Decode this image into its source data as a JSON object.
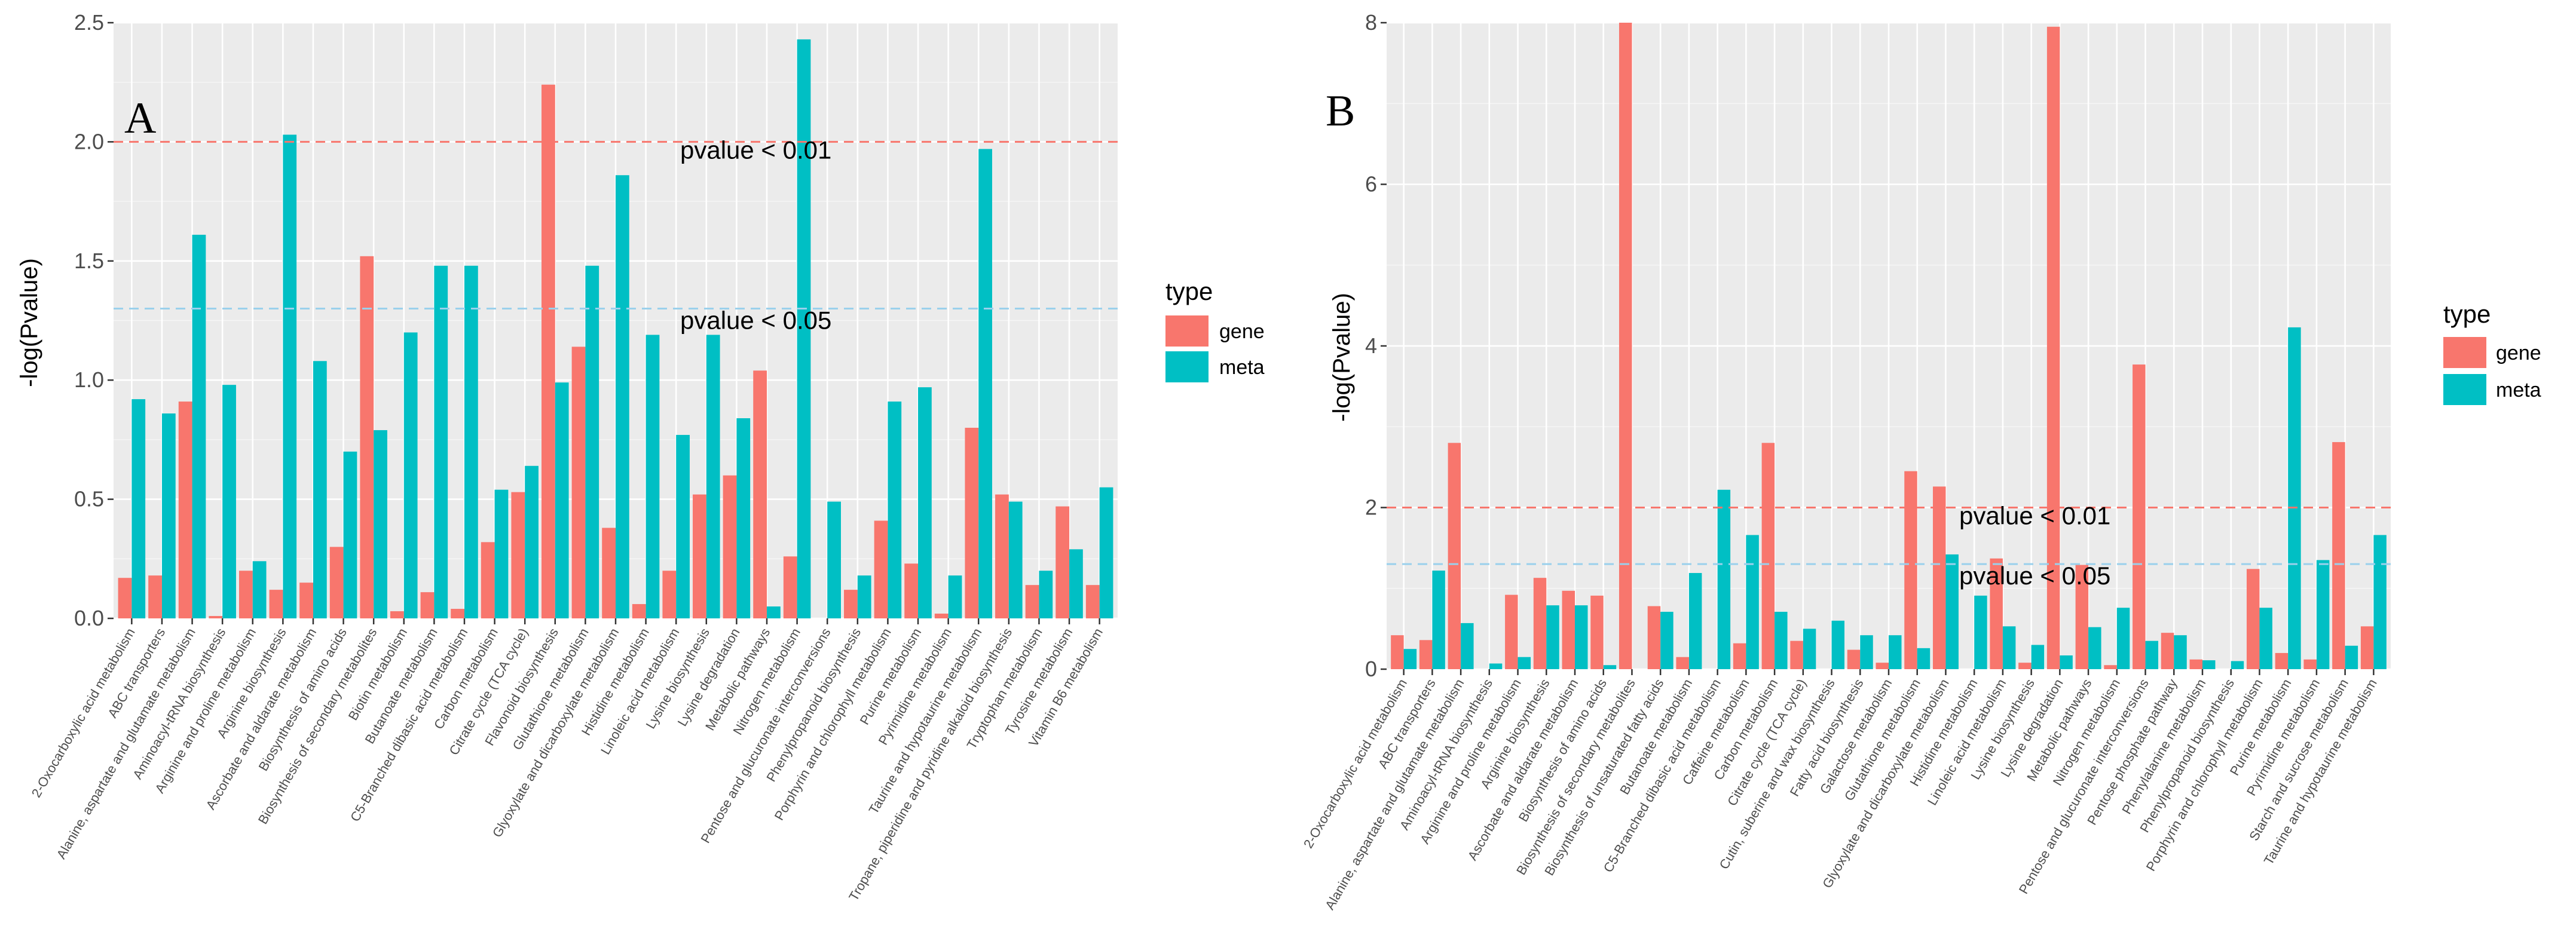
{
  "colors": {
    "gene": "#F8766D",
    "meta": "#00BFC4",
    "panel_bg": "#EBEBEB",
    "grid_major": "#FFFFFF",
    "threshold_001": "#F8766D",
    "threshold_005": "#9AD0EC"
  },
  "legend_a": {
    "title": "type",
    "items": [
      "gene",
      "meta"
    ]
  },
  "legend_b": {
    "title": "type",
    "items": [
      "gene",
      "meta"
    ]
  },
  "chart_data": [
    {
      "panel": "A",
      "type": "bar",
      "title": "",
      "ylabel": "-log(Pvalue)",
      "xlabel": "",
      "ylim": [
        0,
        2.5
      ],
      "yticks": [
        0.0,
        0.5,
        1.0,
        1.5,
        2.0,
        2.5
      ],
      "ytick_labels": [
        "0.0",
        "0.5",
        "1.0",
        "1.5",
        "2.0",
        "2.5"
      ],
      "thresholds": [
        {
          "label": "pvalue < 0.01",
          "value": 2.0,
          "color": "#F8766D"
        },
        {
          "label": "pvalue < 0.05",
          "value": 1.3,
          "color": "#9AD0EC"
        }
      ],
      "categories": [
        "2-Oxocarboxylic acid metabolism",
        "ABC transporters",
        "Alanine, aspartate and glutamate metabolism",
        "Aminoacyl-tRNA biosynthesis",
        "Arginine and proline metabolism",
        "Arginine biosynthesis",
        "Ascorbate and aldarate metabolism",
        "Biosynthesis of amino acids",
        "Biosynthesis of secondary metabolites",
        "Biotin metabolism",
        "Butanoate metabolism",
        "C5-Branched dibasic acid metabolism",
        "Carbon metabolism",
        "Citrate cycle (TCA cycle)",
        "Flavonoid biosynthesis",
        "Glutathione metabolism",
        "Glyoxylate and dicarboxylate metabolism",
        "Histidine metabolism",
        "Linoleic acid metabolism",
        "Lysine biosynthesis",
        "Lysine degradation",
        "Metabolic pathways",
        "Nitrogen metabolism",
        "Pentose and glucuronate interconversions",
        "Phenylpropanoid biosynthesis",
        "Porphyrin and chlorophyll metabolism",
        "Purine metabolism",
        "Pyrimidine metabolism",
        "Taurine and hypotaurine metabolism",
        "Tropane, piperidine and pyridine alkaloid biosynthesis",
        "Tryptophan metabolism",
        "Tyrosine metabolism",
        "Vitamin B6 metabolism"
      ],
      "series": [
        {
          "name": "gene",
          "values": [
            0.17,
            0.18,
            0.91,
            0.01,
            0.2,
            0.12,
            0.15,
            0.3,
            1.52,
            0.03,
            0.11,
            0.04,
            0.32,
            0.53,
            2.24,
            1.14,
            0.38,
            0.06,
            0.2,
            0.52,
            0.6,
            1.04,
            0.26,
            0.0,
            0.12,
            0.41,
            0.23,
            0.02,
            0.8,
            0.52,
            0.14,
            0.47,
            0.14
          ]
        },
        {
          "name": "meta",
          "values": [
            0.92,
            0.86,
            1.61,
            0.98,
            0.24,
            2.03,
            1.08,
            0.7,
            0.79,
            1.2,
            1.48,
            1.48,
            0.54,
            0.64,
            0.99,
            1.48,
            1.86,
            1.19,
            0.77,
            1.19,
            0.84,
            0.05,
            2.43,
            0.49,
            0.18,
            0.91,
            0.97,
            0.18,
            1.97,
            0.49,
            0.2,
            0.29,
            0.55
          ]
        }
      ]
    },
    {
      "panel": "B",
      "type": "bar",
      "title": "",
      "ylabel": "-log(Pvalue)",
      "xlabel": "",
      "ylim": [
        0,
        8
      ],
      "yticks": [
        0,
        2,
        4,
        6,
        8
      ],
      "ytick_labels": [
        "0",
        "2",
        "4",
        "6",
        "8"
      ],
      "thresholds": [
        {
          "label": "pvalue < 0.01",
          "value": 2.0,
          "color": "#F8766D"
        },
        {
          "label": "pvalue < 0.05",
          "value": 1.3,
          "color": "#9AD0EC"
        }
      ],
      "categories": [
        "2-Oxocarboxylic acid metabolism",
        "ABC transporters",
        "Alanine, aspartate and glutamate metabolism",
        "Aminoacyl-tRNA biosynthesis",
        "Arginine and proline metabolism",
        "Arginine biosynthesis",
        "Ascorbate and aldarate metabolism",
        "Biosynthesis of amino acids",
        "Biosynthesis of secondary metabolites",
        "Biosynthesis of unsaturated fatty acids",
        "Butanoate metabolism",
        "C5-Branched dibasic acid metabolism",
        "Caffeine metabolism",
        "Carbon metabolism",
        "Citrate cycle (TCA cycle)",
        "Cutin, suberine and wax biosynthesis",
        "Fatty acid biosynthesis",
        "Galactose metabolism",
        "Glutathione metabolism",
        "Glyoxylate and dicarboxylate metabolism",
        "Histidine metabolism",
        "Linoleic acid metabolism",
        "Lysine biosynthesis",
        "Lysine degradation",
        "Metabolic pathways",
        "Nitrogen metabolism",
        "Pentose and glucuronate interconversions",
        "Pentose phosphate pathway",
        "Phenylalanine metabolism",
        "Phenylpropanoid biosynthesis",
        "Porphyrin and chlorophyll metabolism",
        "Purine metabolism",
        "Pyrimidine metabolism",
        "Starch and sucrose metabolism",
        "Taurine and hypotaurine metabolism"
      ],
      "series": [
        {
          "name": "gene",
          "values": [
            0.42,
            0.36,
            2.8,
            0.0,
            0.92,
            1.13,
            0.97,
            0.91,
            8.0,
            0.78,
            0.15,
            0.0,
            0.32,
            2.8,
            0.35,
            0.0,
            0.24,
            0.08,
            2.45,
            2.26,
            0.0,
            1.37,
            0.08,
            7.95,
            1.29,
            0.05,
            3.77,
            0.45,
            0.12,
            0.0,
            1.24,
            0.2,
            0.12,
            2.81,
            0.53
          ]
        },
        {
          "name": "meta",
          "values": [
            0.25,
            1.22,
            0.57,
            0.07,
            0.15,
            0.79,
            0.79,
            0.05,
            0.0,
            0.71,
            1.19,
            2.22,
            1.66,
            0.71,
            0.5,
            0.6,
            0.42,
            0.42,
            0.26,
            1.42,
            0.91,
            0.53,
            0.3,
            0.17,
            0.52,
            0.76,
            0.35,
            0.42,
            0.11,
            0.1,
            0.76,
            4.23,
            1.35,
            0.29,
            1.66
          ]
        }
      ]
    }
  ],
  "panel_labels": [
    "A",
    "B"
  ]
}
